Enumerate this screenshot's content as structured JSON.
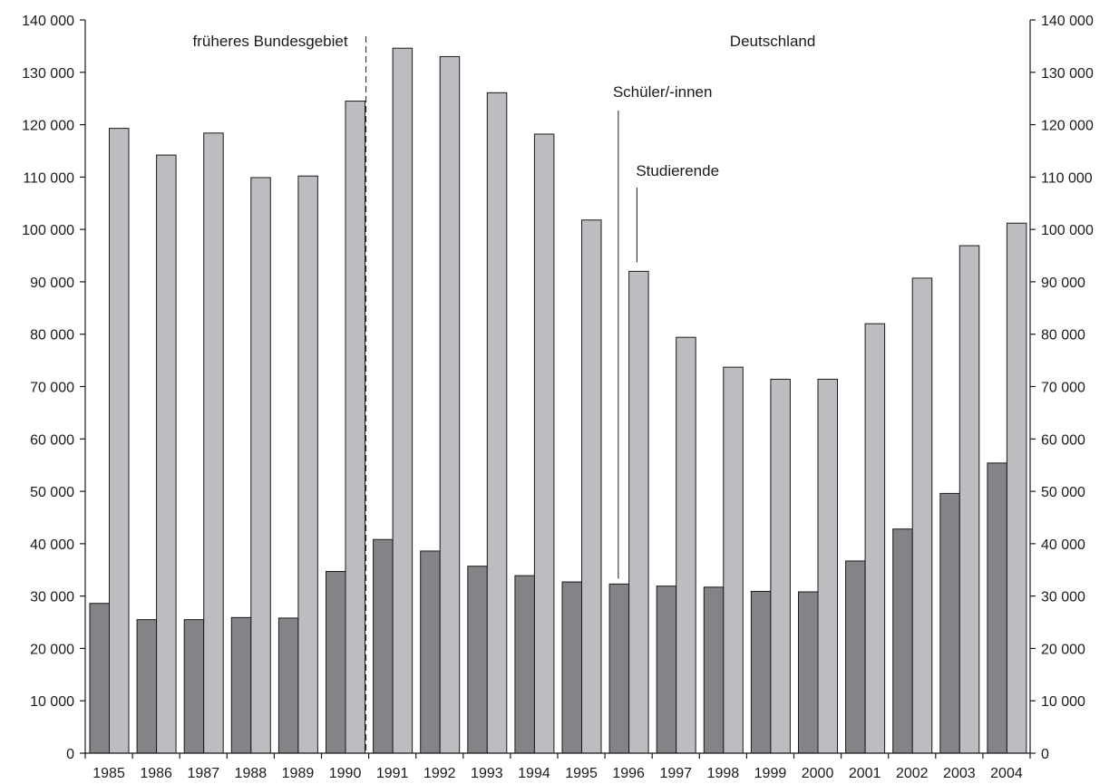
{
  "chart_data": {
    "type": "bar",
    "categories": [
      "1985",
      "1986",
      "1987",
      "1988",
      "1989",
      "1990",
      "1991",
      "1992",
      "1993",
      "1994",
      "1995",
      "1996",
      "1997",
      "1998",
      "1999",
      "2000",
      "2001",
      "2002",
      "2003",
      "2004"
    ],
    "series": [
      {
        "name": "Schüler/-innen",
        "color": "#838487",
        "values": [
          28600,
          25500,
          25500,
          25900,
          25800,
          34700,
          40800,
          38600,
          35700,
          33900,
          32700,
          32300,
          31900,
          31700,
          30900,
          30800,
          36700,
          42800,
          49600,
          55400
        ]
      },
      {
        "name": "Studierende",
        "color": "#bcbcc1",
        "values": [
          119300,
          114200,
          118400,
          109900,
          110200,
          124500,
          134600,
          133000,
          126100,
          118200,
          101800,
          92000,
          79400,
          73700,
          71400,
          71400,
          82000,
          90700,
          96900,
          101200
        ]
      }
    ],
    "ylim": [
      0,
      140000
    ],
    "yticks": [
      0,
      10000,
      20000,
      30000,
      40000,
      50000,
      60000,
      70000,
      80000,
      90000,
      100000,
      110000,
      120000,
      130000,
      140000
    ],
    "ytick_labels": [
      "0",
      "10 000",
      "20 000",
      "30 000",
      "40 000",
      "50 000",
      "60 000",
      "70 000",
      "80 000",
      "90 000",
      "100 000",
      "110 000",
      "120 000",
      "130 000",
      "140 000"
    ],
    "title": "",
    "xlabel": "",
    "ylabel": "",
    "grid": false,
    "axis_right": true,
    "divider_after": "1990",
    "region_labels": [
      "früheres Bundesgebiet",
      "Deutschland"
    ],
    "series_labels": [
      "Schüler/-innen",
      "Studierende"
    ]
  }
}
